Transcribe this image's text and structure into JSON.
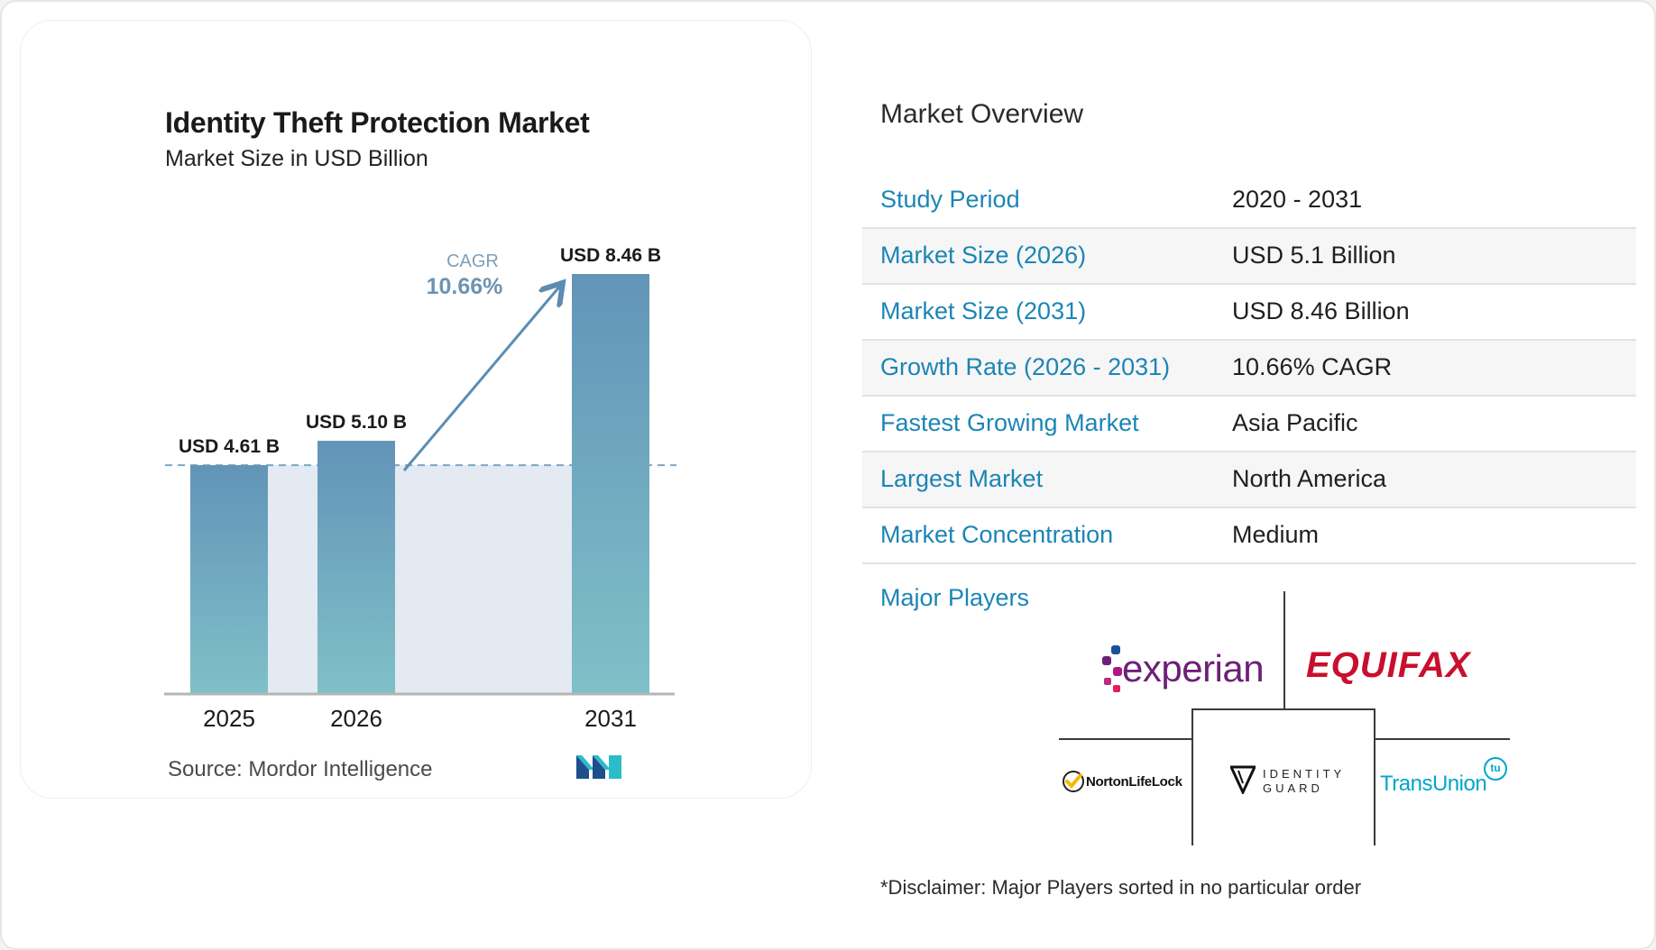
{
  "chart_data": {
    "type": "bar",
    "title": "Identity Theft Protection Market",
    "subtitle": "Market Size in USD Billion",
    "categories": [
      "2025",
      "2026",
      "2031"
    ],
    "values": [
      4.61,
      5.1,
      8.46
    ],
    "data_labels": [
      "USD 4.61 B",
      "USD 5.10 B",
      "USD 8.46 B"
    ],
    "cagr_label": "CAGR",
    "cagr_value": "10.66%",
    "source": "Source:  Mordor Intelligence",
    "colors": {
      "bar_top": "#6294b8",
      "bar_bottom": "#7fc0c8",
      "band": "#e3eaf2",
      "arrow": "#5b8db3",
      "axis": "#b5b5b5",
      "dashed": "#7aa6c4"
    }
  },
  "overview": {
    "title": "Market Overview",
    "rows": [
      {
        "label": "Study Period",
        "value": "2020 - 2031"
      },
      {
        "label": "Market Size (2026)",
        "value": "USD 5.1 Billion"
      },
      {
        "label": "Market Size (2031)",
        "value": "USD 8.46 Billion"
      },
      {
        "label": "Growth Rate (2026 - 2031)",
        "value": "10.66% CAGR"
      },
      {
        "label": "Fastest Growing Market",
        "value": "Asia Pacific"
      },
      {
        "label": "Largest Market",
        "value": "North America"
      },
      {
        "label": "Market Concentration",
        "value": "Medium"
      }
    ]
  },
  "players": {
    "title": "Major Players",
    "logos": {
      "experian": "experian",
      "equifax": "EQUIFAX",
      "norton": "NortonLifeLock",
      "identity_guard_top": "IDENTITY",
      "identity_guard_bottom": "GUARD",
      "transunion": "TransUnion",
      "transunion_badge": "tu"
    }
  },
  "disclaimer": "*Disclaimer: Major Players sorted in no particular order"
}
